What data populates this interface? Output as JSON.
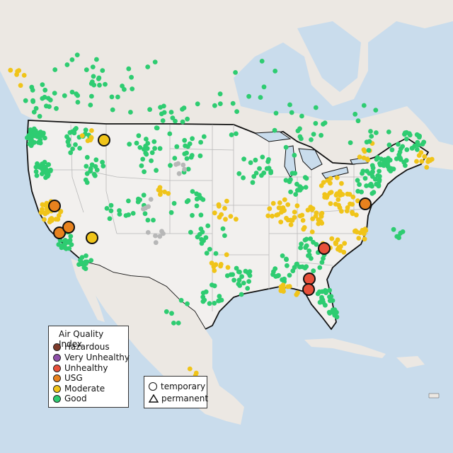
{
  "legend": {
    "title": "Air Quality Index",
    "items": [
      {
        "label": "Hazardous",
        "color": "#7e3b2a"
      },
      {
        "label": "Very Unhealthy",
        "color": "#8e4fa8"
      },
      {
        "label": "Unhealthy",
        "color": "#e8503a"
      },
      {
        "label": "USG",
        "color": "#e8821e"
      },
      {
        "label": "Moderate",
        "color": "#f0c419"
      },
      {
        "label": "Good",
        "color": "#2ecc71"
      }
    ]
  },
  "site_type_legend": {
    "items": [
      {
        "label": "temporary",
        "shape": "circle"
      },
      {
        "label": "permanent",
        "shape": "triangle"
      }
    ]
  },
  "colors": {
    "water": "#c9dcec",
    "land": "#ece8e3",
    "us_land": "#f2f0ee",
    "state_border": "#b9b9b9",
    "country_border": "#111111",
    "no_data": "#b7b7b7"
  },
  "highlighted_monitors": [
    {
      "category": "Moderate",
      "location": "Montana"
    },
    {
      "category": "USG",
      "location": "Northern California"
    },
    {
      "category": "USG",
      "location": "Central California"
    },
    {
      "category": "USG",
      "location": "Central California"
    },
    {
      "category": "Moderate",
      "location": "Southern Nevada"
    },
    {
      "category": "USG",
      "location": "Virginia"
    },
    {
      "category": "Unhealthy",
      "location": "South Carolina"
    },
    {
      "category": "Unhealthy",
      "location": "Florida Panhandle"
    },
    {
      "category": "Unhealthy",
      "location": "Florida Panhandle"
    }
  ]
}
